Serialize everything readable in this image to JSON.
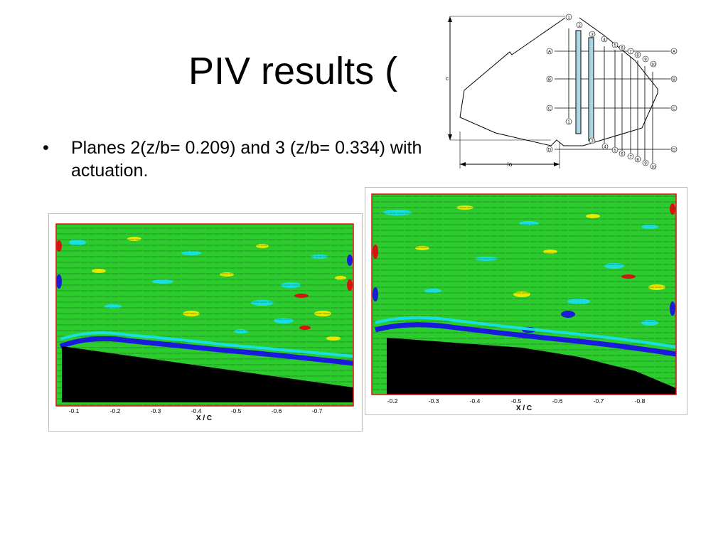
{
  "slide": {
    "title": "PIV results (",
    "bullet_marker": "•",
    "bullet_text": "Planes 2(z/b= 0.209) and 3 (z/b= 0.334) with actuation."
  },
  "diagram": {
    "chord_label": "c",
    "length_label": "lo",
    "row_labels": [
      "A",
      "B",
      "C",
      "D"
    ],
    "plane_labels_top": [
      "1",
      "2",
      "3",
      "4",
      "5",
      "6",
      "7",
      "8",
      "9",
      "10"
    ],
    "plane_labels_bottom": [
      "1",
      "3",
      "4",
      "5",
      "6",
      "7",
      "8",
      "9",
      "10"
    ]
  },
  "figures": [
    {
      "axis_label": "X / C",
      "ticks": [
        "-0.1",
        "-0.2",
        "-0.3",
        "-0.4",
        "-0.5",
        "-0.6",
        "-0.7"
      ]
    },
    {
      "axis_label": "X / C",
      "ticks": [
        "-0.2",
        "-0.3",
        "-0.4",
        "-0.5",
        "-0.6",
        "-0.7",
        "-0.8"
      ]
    }
  ],
  "colors": {
    "field": "#2ccc2e",
    "cyan": "#19e0e0",
    "blue": "#1a1adc",
    "red": "#e01010",
    "yellow": "#e8e800",
    "model": "#000000",
    "plane_fill": "#a9d6e5"
  }
}
